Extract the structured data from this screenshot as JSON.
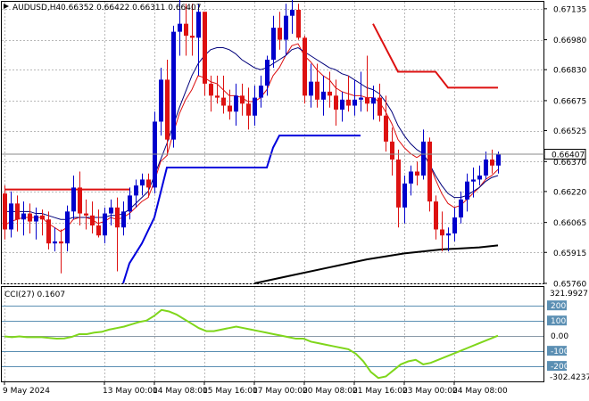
{
  "header": {
    "symbol_info": "AUDUSD,H4",
    "ohlc": "0.66352 0.66422 0.66311 0.66407"
  },
  "cci_header": {
    "label": "CCI(27) 0.1607"
  },
  "price_axis": {
    "ticks": [
      "0.67135",
      "0.66980",
      "0.66830",
      "0.66675",
      "0.66525",
      "0.66370",
      "0.66220",
      "0.66065",
      "0.65915",
      "0.65760"
    ],
    "tick_values": [
      0.67135,
      0.6698,
      0.6683,
      0.66675,
      0.66525,
      0.6637,
      0.6622,
      0.66065,
      0.65915,
      0.6576
    ],
    "current_price": "0.66407",
    "current_value": 0.66407,
    "ylim": [
      0.6576,
      0.6717
    ]
  },
  "cci_axis": {
    "top": "321.9927",
    "bottom": "-302.4237",
    "levels": [
      "200",
      "100",
      "0.00",
      "-100",
      "-200"
    ],
    "level_values": [
      200,
      100,
      0,
      -100,
      -200
    ],
    "ylim": [
      -302.4237,
      321.9927
    ]
  },
  "time_axis": {
    "labels": [
      "9 May 2024",
      "13 May 00:00",
      "14 May 08:00",
      "15 May 16:00",
      "17 May 00:00",
      "20 May 08:00",
      "21 May 16:00",
      "23 May 00:00",
      "24 May 08:00"
    ],
    "label_bars": [
      0,
      16,
      24,
      32,
      40,
      48,
      56,
      64,
      72
    ]
  },
  "colors": {
    "bull": "#0000cc",
    "bear": "#dd1111",
    "ma_fast": "#dd1111",
    "ma_slow": "#00007a",
    "trail": "#0000dd",
    "trail_upper": "#dd1111",
    "ma_long": "#000000",
    "cci": "#7fd61b",
    "cci_band": "#5b8fb3",
    "tag_bg": "#ffffff"
  },
  "chart_data": {
    "type": "candlestick",
    "candles": [
      [
        0.6621,
        0.6625,
        0.6598,
        0.6603
      ],
      [
        0.6603,
        0.6622,
        0.6599,
        0.6616
      ],
      [
        0.6616,
        0.662,
        0.6602,
        0.6608
      ],
      [
        0.6608,
        0.6617,
        0.66,
        0.6611
      ],
      [
        0.6611,
        0.6616,
        0.6601,
        0.6607
      ],
      [
        0.6607,
        0.6614,
        0.6598,
        0.661
      ],
      [
        0.661,
        0.6613,
        0.66,
        0.6608
      ],
      [
        0.6608,
        0.6612,
        0.6593,
        0.6596
      ],
      [
        0.6596,
        0.6604,
        0.6592,
        0.6597
      ],
      [
        0.6597,
        0.6603,
        0.6581,
        0.6596
      ],
      [
        0.6596,
        0.6615,
        0.6592,
        0.6612
      ],
      [
        0.6612,
        0.663,
        0.6608,
        0.6624
      ],
      [
        0.6624,
        0.6632,
        0.6605,
        0.6611
      ],
      [
        0.6611,
        0.6618,
        0.6603,
        0.661
      ],
      [
        0.661,
        0.6617,
        0.6601,
        0.6605
      ],
      [
        0.6605,
        0.6613,
        0.6599,
        0.66
      ],
      [
        0.66,
        0.6614,
        0.6596,
        0.6611
      ],
      [
        0.6611,
        0.6618,
        0.6605,
        0.6614
      ],
      [
        0.6614,
        0.6619,
        0.6582,
        0.6604
      ],
      [
        0.6604,
        0.6617,
        0.66,
        0.6612
      ],
      [
        0.6612,
        0.6624,
        0.6608,
        0.662
      ],
      [
        0.662,
        0.6628,
        0.6614,
        0.6625
      ],
      [
        0.6625,
        0.6631,
        0.662,
        0.6628
      ],
      [
        0.6628,
        0.6631,
        0.6619,
        0.6624
      ],
      [
        0.6624,
        0.6662,
        0.6621,
        0.6657
      ],
      [
        0.6657,
        0.6684,
        0.665,
        0.6678
      ],
      [
        0.6678,
        0.6688,
        0.664,
        0.6648
      ],
      [
        0.6648,
        0.6705,
        0.6644,
        0.6702
      ],
      [
        0.6702,
        0.6722,
        0.669,
        0.6706
      ],
      [
        0.6706,
        0.6716,
        0.669,
        0.67
      ],
      [
        0.67,
        0.6716,
        0.669,
        0.6699
      ],
      [
        0.6699,
        0.6716,
        0.668,
        0.6712
      ],
      [
        0.6712,
        0.6712,
        0.667,
        0.6676
      ],
      [
        0.6676,
        0.668,
        0.6662,
        0.667
      ],
      [
        0.667,
        0.668,
        0.6666,
        0.6669
      ],
      [
        0.6669,
        0.668,
        0.6661,
        0.6665
      ],
      [
        0.6665,
        0.6673,
        0.6658,
        0.6662
      ],
      [
        0.6662,
        0.6676,
        0.6655,
        0.667
      ],
      [
        0.667,
        0.6676,
        0.666,
        0.6666
      ],
      [
        0.6666,
        0.6674,
        0.6653,
        0.666
      ],
      [
        0.666,
        0.6675,
        0.6655,
        0.6669
      ],
      [
        0.6669,
        0.668,
        0.6664,
        0.6675
      ],
      [
        0.6675,
        0.669,
        0.667,
        0.6688
      ],
      [
        0.6688,
        0.671,
        0.6684,
        0.6704
      ],
      [
        0.6704,
        0.6712,
        0.6693,
        0.6698
      ],
      [
        0.6698,
        0.6716,
        0.669,
        0.671
      ],
      [
        0.671,
        0.6718,
        0.6701,
        0.6713
      ],
      [
        0.6713,
        0.6716,
        0.6698,
        0.6699
      ],
      [
        0.6699,
        0.67,
        0.6666,
        0.667
      ],
      [
        0.667,
        0.6686,
        0.6664,
        0.6677
      ],
      [
        0.6677,
        0.6686,
        0.6664,
        0.6668
      ],
      [
        0.6668,
        0.668,
        0.666,
        0.6672
      ],
      [
        0.6672,
        0.6682,
        0.6664,
        0.667
      ],
      [
        0.667,
        0.6678,
        0.6655,
        0.6663
      ],
      [
        0.6663,
        0.6672,
        0.6657,
        0.6668
      ],
      [
        0.6668,
        0.668,
        0.6662,
        0.6665
      ],
      [
        0.6665,
        0.6678,
        0.666,
        0.6668
      ],
      [
        0.6668,
        0.6682,
        0.6662,
        0.6669
      ],
      [
        0.6669,
        0.669,
        0.6662,
        0.6666
      ],
      [
        0.6666,
        0.6675,
        0.6658,
        0.6669
      ],
      [
        0.6669,
        0.6676,
        0.6657,
        0.666
      ],
      [
        0.666,
        0.667,
        0.6642,
        0.6647
      ],
      [
        0.6647,
        0.6654,
        0.663,
        0.6638
      ],
      [
        0.6638,
        0.6643,
        0.6604,
        0.6614
      ],
      [
        0.6614,
        0.663,
        0.6606,
        0.6626
      ],
      [
        0.6626,
        0.6635,
        0.662,
        0.6632
      ],
      [
        0.6632,
        0.6637,
        0.6625,
        0.663
      ],
      [
        0.663,
        0.6653,
        0.6628,
        0.6647
      ],
      [
        0.6647,
        0.6649,
        0.6612,
        0.6617
      ],
      [
        0.6617,
        0.662,
        0.6598,
        0.6603
      ],
      [
        0.6603,
        0.6612,
        0.6592,
        0.66
      ],
      [
        0.66,
        0.6604,
        0.6592,
        0.6601
      ],
      [
        0.6601,
        0.6614,
        0.6597,
        0.6609
      ],
      [
        0.6609,
        0.6622,
        0.6606,
        0.6618
      ],
      [
        0.6618,
        0.6631,
        0.6612,
        0.6627
      ],
      [
        0.6627,
        0.6634,
        0.6619,
        0.6628
      ],
      [
        0.6628,
        0.6635,
        0.6625,
        0.663
      ],
      [
        0.663,
        0.6642,
        0.6628,
        0.6638
      ],
      [
        0.6638,
        0.6643,
        0.6631,
        0.6635
      ],
      [
        0.6635,
        0.6642,
        0.6631,
        0.66407
      ]
    ],
    "ma_fast": [
      0.6605,
      0.6607,
      0.6608,
      0.6609,
      0.6609,
      0.6609,
      0.6609,
      0.6606,
      0.6604,
      0.6602,
      0.6604,
      0.6608,
      0.6609,
      0.6609,
      0.6608,
      0.6606,
      0.6607,
      0.6609,
      0.6608,
      0.6609,
      0.6611,
      0.6614,
      0.6617,
      0.6619,
      0.6627,
      0.6637,
      0.664,
      0.6651,
      0.6661,
      0.6668,
      0.6673,
      0.668,
      0.6679,
      0.6677,
      0.6676,
      0.6673,
      0.667,
      0.667,
      0.6669,
      0.6667,
      0.6667,
      0.6669,
      0.6673,
      0.668,
      0.6684,
      0.669,
      0.6695,
      0.6696,
      0.669,
      0.6687,
      0.6683,
      0.668,
      0.6678,
      0.6674,
      0.6672,
      0.6671,
      0.667,
      0.667,
      0.6669,
      0.6669,
      0.6667,
      0.6662,
      0.6656,
      0.6648,
      0.6644,
      0.6641,
      0.6639,
      0.6641,
      0.6636,
      0.6628,
      0.6621,
      0.6616,
      0.6614,
      0.6615,
      0.6618,
      0.6621,
      0.6624,
      0.6628,
      0.663,
      0.6633
    ],
    "ma_slow": [
      0.6612,
      0.6612,
      0.6612,
      0.6612,
      0.6612,
      0.6611,
      0.6611,
      0.661,
      0.6609,
      0.6608,
      0.6608,
      0.6609,
      0.6609,
      0.6609,
      0.6609,
      0.6609,
      0.6609,
      0.661,
      0.661,
      0.6611,
      0.6613,
      0.6616,
      0.6619,
      0.6622,
      0.663,
      0.6638,
      0.6646,
      0.6655,
      0.6664,
      0.6672,
      0.668,
      0.6686,
      0.669,
      0.6693,
      0.6694,
      0.6694,
      0.6693,
      0.6691,
      0.6688,
      0.6686,
      0.6684,
      0.6683,
      0.6684,
      0.6686,
      0.6688,
      0.669,
      0.6693,
      0.6694,
      0.6692,
      0.669,
      0.6688,
      0.6686,
      0.6684,
      0.6683,
      0.6681,
      0.668,
      0.6678,
      0.6676,
      0.6674,
      0.6673,
      0.6671,
      0.6667,
      0.6662,
      0.6655,
      0.665,
      0.6646,
      0.6643,
      0.6641,
      0.6636,
      0.663,
      0.6625,
      0.6621,
      0.6619,
      0.6619,
      0.662,
      0.6622,
      0.6624,
      0.6627,
      0.6629,
      0.663
    ],
    "ma_long": [
      [
        40,
        0.6576
      ],
      [
        46,
        0.658
      ],
      [
        52,
        0.6584
      ],
      [
        58,
        0.6588
      ],
      [
        64,
        0.6591
      ],
      [
        70,
        0.6593
      ],
      [
        76,
        0.6594
      ],
      [
        79,
        0.6595
      ]
    ],
    "trail_lower": [
      [
        19,
        0.6576
      ],
      [
        20,
        0.6586
      ],
      [
        22,
        0.6596
      ],
      [
        24,
        0.6609
      ],
      [
        26,
        0.6634
      ],
      [
        42,
        0.6634
      ],
      [
        43,
        0.6644
      ],
      [
        44,
        0.665
      ],
      [
        57,
        0.665
      ]
    ],
    "trail_upper_left": [
      [
        0,
        0.6623
      ],
      [
        20,
        0.6623
      ]
    ],
    "trail_upper_right": [
      [
        59,
        0.6706
      ],
      [
        63,
        0.6682
      ],
      [
        69,
        0.6682
      ],
      [
        71,
        0.6674
      ],
      [
        79,
        0.6674
      ]
    ],
    "cci": [
      -5,
      -10,
      -5,
      -10,
      -10,
      -10,
      -15,
      -20,
      -18,
      -8,
      10,
      10,
      20,
      25,
      40,
      50,
      60,
      75,
      90,
      100,
      130,
      170,
      160,
      140,
      110,
      80,
      50,
      30,
      30,
      40,
      50,
      60,
      50,
      40,
      30,
      20,
      10,
      0,
      -10,
      -20,
      -20,
      -40,
      -50,
      -60,
      -70,
      -80,
      -90,
      -120,
      -170,
      -240,
      -280,
      -270,
      -230,
      -190,
      -170,
      -160,
      -190,
      -180,
      -160,
      -140,
      -120,
      -100,
      -80,
      -60,
      -40,
      -20,
      0
    ],
    "cci_scale_note": ""
  }
}
